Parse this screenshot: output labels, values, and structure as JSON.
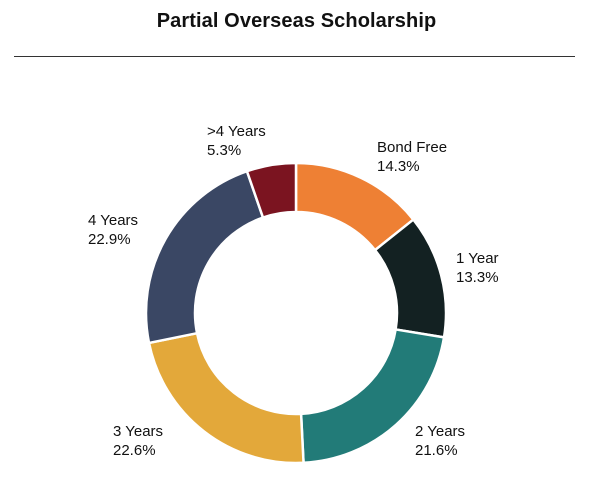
{
  "chart_data": {
    "type": "pie",
    "title": "Partial Overseas Scholarship",
    "donut": true,
    "slices": [
      {
        "label": "Bond Free",
        "value": 14.3,
        "value_text": "14.3%",
        "color": "#EE8034"
      },
      {
        "label": "1 Year",
        "value": 13.3,
        "value_text": "13.3%",
        "color": "#132122"
      },
      {
        "label": "2 Years",
        "value": 21.6,
        "value_text": "21.6%",
        "color": "#227B78"
      },
      {
        "label": "3 Years",
        "value": 22.6,
        "value_text": "22.6%",
        "color": "#E3A83A"
      },
      {
        "label": "4 Years",
        "value": 22.9,
        "value_text": "22.9%",
        "color": "#3A4764"
      },
      {
        "label": ">4 Years",
        "value": 5.3,
        "value_text": "5.3%",
        "color": "#7B1420"
      }
    ]
  }
}
